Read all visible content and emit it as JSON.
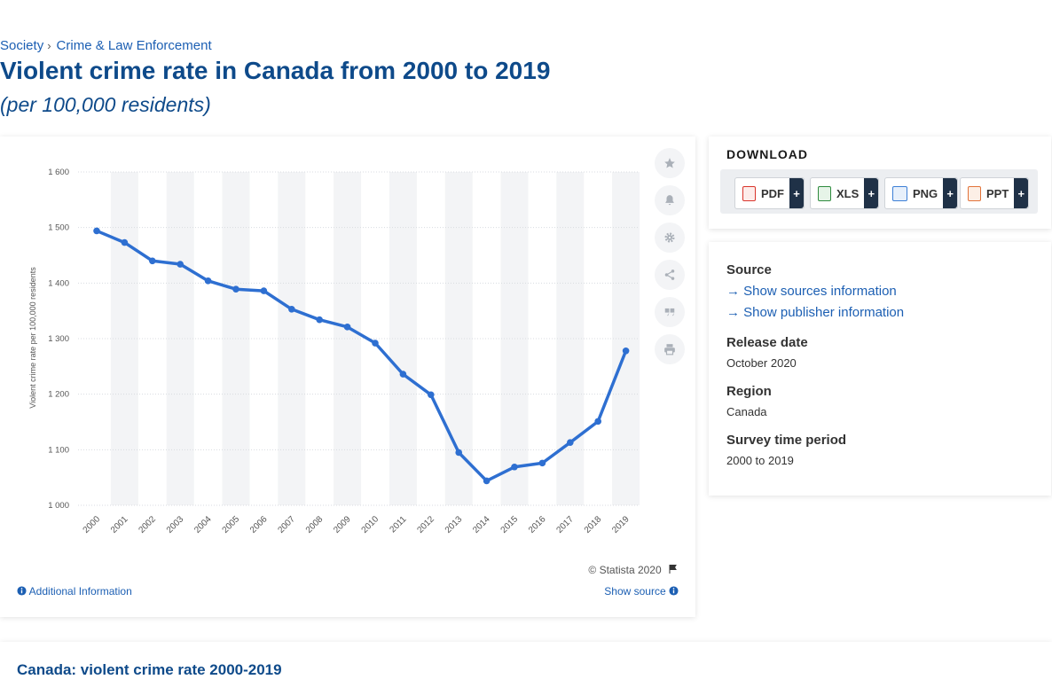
{
  "breadcrumb": {
    "items": [
      "Society",
      "Crime & Law Enforcement"
    ],
    "separator": "›"
  },
  "page": {
    "title": "Violent crime rate in Canada from 2000 to 2019",
    "subtitle": "(per 100,000 residents)"
  },
  "chart_data": {
    "type": "line",
    "categories": [
      "2000",
      "2001",
      "2002",
      "2003",
      "2004",
      "2005",
      "2006",
      "2007",
      "2008",
      "2009",
      "2010",
      "2011",
      "2012",
      "2013",
      "2014",
      "2015",
      "2016",
      "2017",
      "2018",
      "2019"
    ],
    "values": [
      1494,
      1473,
      1440,
      1434,
      1404,
      1389,
      1386,
      1353,
      1334,
      1321,
      1292,
      1236,
      1199,
      1095,
      1044,
      1069,
      1076,
      1113,
      1151,
      1278
    ],
    "ylabel": "Violent crime rate per 100,000 residents",
    "ylim": [
      1000,
      1600
    ],
    "yticks": [
      1000,
      1100,
      1200,
      1300,
      1400,
      1500,
      1600
    ],
    "ytick_labels": [
      "1 000",
      "1 100",
      "1 200",
      "1 300",
      "1 400",
      "1 500",
      "1 600"
    ],
    "grid": true,
    "line_color": "#2e6fd1",
    "band_color": "#f3f4f6"
  },
  "chart_card": {
    "copyright": "© Statista 2020",
    "additional_info": "Additional Information",
    "show_source": "Show source",
    "tools": [
      "star-icon",
      "bell-icon",
      "gear-icon",
      "share-icon",
      "quote-icon",
      "print-icon"
    ]
  },
  "download": {
    "title": "DOWNLOAD",
    "buttons": [
      {
        "label": "PDF",
        "color": "#d9342b"
      },
      {
        "label": "XLS",
        "color": "#2e8b3e"
      },
      {
        "label": "PNG",
        "color": "#3c7fd6"
      },
      {
        "label": "PPT",
        "color": "#e2733a"
      }
    ],
    "plus": "+"
  },
  "info": {
    "source_heading": "Source",
    "sources_link": "Show sources information",
    "publisher_link": "Show publisher information",
    "release_heading": "Release date",
    "release_value": "October 2020",
    "region_heading": "Region",
    "region_value": "Canada",
    "period_heading": "Survey time period",
    "period_value": "2000 to 2019"
  },
  "bottom": {
    "title": "Canada: violent crime rate 2000-2019"
  }
}
